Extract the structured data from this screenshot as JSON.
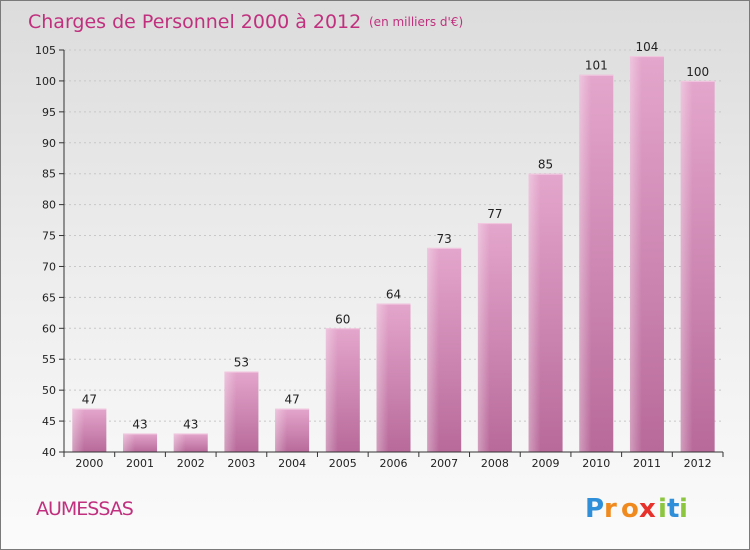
{
  "chart_data": {
    "type": "bar",
    "title": "Charges de Personnel 2000 à 2012",
    "subtitle": "(en milliers d'€)",
    "categories": [
      "2000",
      "2001",
      "2002",
      "2003",
      "2004",
      "2005",
      "2006",
      "2007",
      "2008",
      "2009",
      "2010",
      "2011",
      "2012"
    ],
    "values": [
      47,
      43,
      43,
      53,
      47,
      60,
      64,
      73,
      77,
      85,
      101,
      104,
      100
    ],
    "ylim": [
      40,
      105
    ],
    "yticks": [
      40,
      45,
      50,
      55,
      60,
      65,
      70,
      75,
      80,
      85,
      90,
      95,
      100,
      105
    ],
    "grid": true,
    "bar_color": "#d98fbb",
    "bar_color_dark": "#b86a9a"
  },
  "location": "AUMESSAS",
  "brand": {
    "letters": [
      "P",
      "r",
      "o",
      "x",
      "i",
      "t",
      "i"
    ],
    "colors": [
      "#2f8fd8",
      "#f08a1e",
      "#f08a1e",
      "#e8312a",
      "#8cc63f",
      "#2f8fd8",
      "#8cc63f"
    ]
  },
  "colors": {
    "title": "#c0307e",
    "location": "#c0307e",
    "axis": "#333333",
    "grid": "#c8c8c8"
  }
}
